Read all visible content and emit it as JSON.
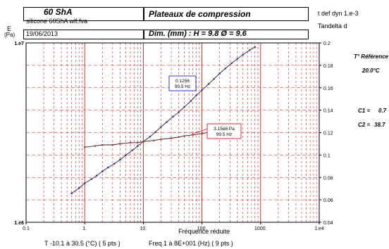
{
  "header": {
    "sample_name": "60 ShA",
    "file_name": "silicone 60ShA wlf.fva",
    "date": "19/06/2013",
    "chart_title": "Plateaux de compression",
    "dimensions": "Dim. (mm) : H = 9.8  Ø = 9.6",
    "right_axis_title_1": "t def dyn 1.e-3",
    "right_axis_title_2": "Tandelta d",
    "left_axis_title_1": "E",
    "left_axis_title_2": "(Pa)"
  },
  "side_info": {
    "ref_temp_label": "T° Référence",
    "ref_temp_value": "20.0°C",
    "c1_label": "C1 =",
    "c1_value": "0.7",
    "c2_label": "C2 =",
    "c2_value": "38.7"
  },
  "footer": {
    "temp_range": "T  -10.1 à 30.5  (°C) ( 5 pts )",
    "freq_range": "Freq  1 à 8E+001  (Hz) ( 9 pts )"
  },
  "colors": {
    "modulus": "#1f1fc8",
    "tandelta": "#d21e1e",
    "grid": "#d21e1e",
    "fit_line": "#222222"
  },
  "chart_data": {
    "type": "scatter",
    "xlabel": "Fréquence réduite",
    "x_scale": "log",
    "xlim": [
      0.1,
      10000
    ],
    "x_ticks": [
      "0.1",
      "1.",
      "10.",
      "100.",
      "1000.",
      "1.e4"
    ],
    "y_left_scale": "log",
    "ylim_left": [
      1000000,
      10000000
    ],
    "y_left_ticks": [
      "1.e6",
      "1.e7"
    ],
    "ylim_right": [
      0.04,
      0.2
    ],
    "y_right_ticks": [
      "0.04",
      "0.06",
      "0.08",
      "0.1",
      "0.12",
      "0.14",
      "0.16",
      "0.18",
      "0.2"
    ],
    "grid": true,
    "series": [
      {
        "key": "modulus",
        "axis": "left",
        "x": [
          0.6,
          0.8,
          1.0,
          1.3,
          1.6,
          2.0,
          2.5,
          3.2,
          4.0,
          5.0,
          6.5,
          8.0,
          10.0,
          13.0,
          16.0,
          20.0,
          25.0,
          32.0,
          40.0,
          50.0,
          65.0,
          80.0,
          100.0,
          130.0,
          160.0,
          200.0,
          250.0,
          320.0,
          400.0,
          500.0,
          650.0,
          800.0
        ],
        "y": [
          1450000,
          1550000,
          1650000,
          1740000,
          1820000,
          1920000,
          2020000,
          2120000,
          2230000,
          2360000,
          2520000,
          2660000,
          2820000,
          3000000,
          3180000,
          3400000,
          3620000,
          3880000,
          4100000,
          4400000,
          4750000,
          5100000,
          5450000,
          5900000,
          6300000,
          6750000,
          7200000,
          7700000,
          8150000,
          8600000,
          9100000,
          9500000
        ]
      },
      {
        "key": "tandelta",
        "axis": "right",
        "x": [
          1.0,
          1.5,
          2.0,
          3.0,
          4.0,
          6.0,
          8.0,
          10.0,
          15.0,
          20.0,
          30.0,
          40.0,
          50.0,
          70.0,
          100.0,
          150.0,
          200.0,
          300.0,
          450.0
        ],
        "y": [
          0.107,
          0.108,
          0.109,
          0.109,
          0.11,
          0.111,
          0.111,
          0.112,
          0.113,
          0.114,
          0.115,
          0.116,
          0.117,
          0.118,
          0.119,
          0.121,
          0.123,
          0.125,
          0.127
        ]
      }
    ],
    "annotations": [
      {
        "series": "modulus",
        "x": 99.5,
        "line1": "0.1256",
        "line2": "99.5 Hz"
      },
      {
        "series": "tandelta",
        "x": 99.5,
        "line1": "3.15e6 Pa",
        "line2": "99.5 Hz"
      }
    ]
  }
}
